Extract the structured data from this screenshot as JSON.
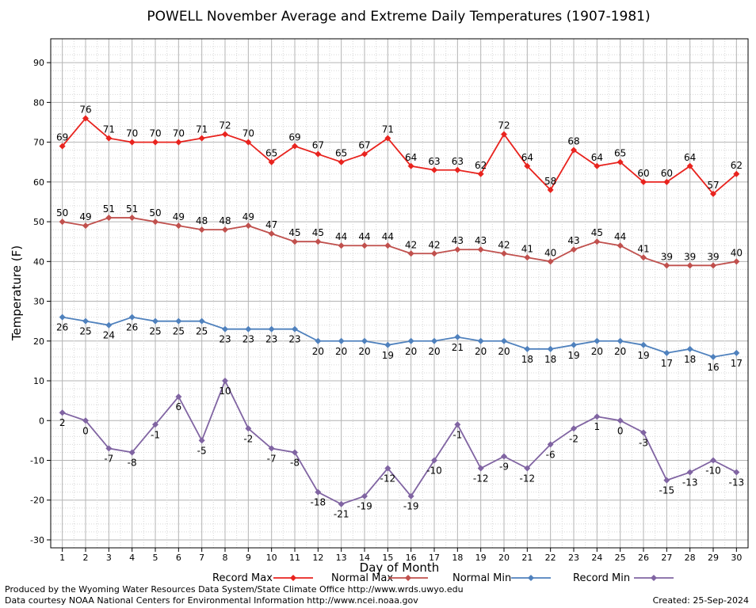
{
  "chart_data": {
    "type": "line",
    "title": "POWELL November Average and Extreme Daily Temperatures (1907-1981)",
    "xlabel": "Day of Month",
    "ylabel": "Temperature (F)",
    "ylim": [
      -32,
      96
    ],
    "y_ticks": [
      -30,
      -20,
      -10,
      0,
      10,
      20,
      30,
      40,
      50,
      60,
      70,
      80,
      90
    ],
    "x": [
      1,
      2,
      3,
      4,
      5,
      6,
      7,
      8,
      9,
      10,
      11,
      12,
      13,
      14,
      15,
      16,
      17,
      18,
      19,
      20,
      21,
      22,
      23,
      24,
      25,
      26,
      27,
      28,
      29,
      30
    ],
    "grid": true,
    "legend_position": "bottom",
    "series": [
      {
        "name": "Record Max",
        "color": "#e8231e",
        "values": [
          69,
          76,
          71,
          70,
          70,
          70,
          71,
          72,
          70,
          65,
          69,
          67,
          65,
          67,
          71,
          64,
          63,
          63,
          62,
          72,
          64,
          58,
          68,
          64,
          65,
          60,
          60,
          64,
          57,
          62
        ]
      },
      {
        "name": "Normal Max",
        "color": "#c0504d",
        "values": [
          50,
          49,
          51,
          51,
          50,
          49,
          48,
          48,
          49,
          47,
          45,
          45,
          44,
          44,
          44,
          42,
          42,
          43,
          43,
          42,
          41,
          40,
          43,
          45,
          44,
          41,
          39,
          39,
          39,
          40
        ]
      },
      {
        "name": "Normal Min",
        "color": "#4f81bd",
        "values": [
          26,
          25,
          24,
          26,
          25,
          25,
          25,
          23,
          23,
          23,
          23,
          20,
          20,
          20,
          19,
          20,
          20,
          21,
          20,
          20,
          18,
          18,
          19,
          20,
          20,
          19,
          17,
          18,
          16,
          17
        ]
      },
      {
        "name": "Record Min",
        "color": "#8064a2",
        "values": [
          2,
          0,
          -7,
          -8,
          -1,
          6,
          -5,
          10,
          -2,
          -7,
          -8,
          -18,
          -21,
          -19,
          -12,
          -19,
          -10,
          -1,
          -12,
          -9,
          -12,
          -6,
          -2,
          1,
          0,
          -3,
          -15,
          -13,
          -10,
          -13
        ]
      }
    ]
  },
  "footer": {
    "line1": "Produced by the Wyoming Water Resources Data System/State Climate Office http://www.wrds.uwyo.edu",
    "line2": "Data courtesy NOAA National Centers for Environmental Information http://www.ncei.noaa.gov",
    "created": "Created:  25-Sep-2024"
  }
}
